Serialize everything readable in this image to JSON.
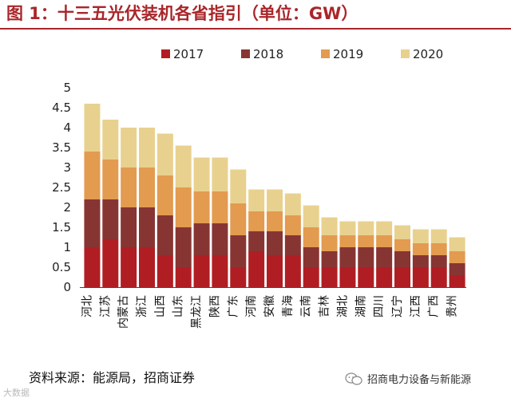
{
  "title": "图 1：十三五光伏装机各省指引（单位：GW）",
  "source": "资料来源：能源局，招商证券",
  "watermark": "招商电力设备与新能源",
  "corner_mark": "大数据",
  "colors": {
    "accent": "#a9262a",
    "s2017": "#b01e23",
    "s2018": "#873533",
    "s2019": "#e39b4f",
    "s2020": "#e8d18f"
  },
  "chart_data": {
    "type": "bar",
    "stacked": true,
    "title": "图 1：十三五光伏装机各省指引（单位：GW）",
    "xlabel": "",
    "ylabel": "",
    "ylim": [
      0,
      5
    ],
    "yticks": [
      "0",
      "0.5",
      "1",
      "1.5",
      "2",
      "2.5",
      "3",
      "3.5",
      "4",
      "4.5",
      "5"
    ],
    "grid": false,
    "legend_position": "top-center",
    "categories": [
      "河北",
      "江苏",
      "内蒙古",
      "浙江",
      "山西",
      "山东",
      "黑龙江",
      "陕西",
      "广东",
      "河南",
      "安徽",
      "青海",
      "云南",
      "吉林",
      "湖北",
      "湖南",
      "四川",
      "辽宁",
      "江西",
      "广西",
      "贵州"
    ],
    "series": [
      {
        "name": "2017",
        "values": [
          1.0,
          1.2,
          1.0,
          1.0,
          0.8,
          0.5,
          0.8,
          0.8,
          0.5,
          0.9,
          0.8,
          0.8,
          0.5,
          0.5,
          0.5,
          0.5,
          0.5,
          0.5,
          0.5,
          0.5,
          0.3
        ]
      },
      {
        "name": "2018",
        "values": [
          1.2,
          1.0,
          1.0,
          1.0,
          1.0,
          1.0,
          0.8,
          0.8,
          0.8,
          0.5,
          0.6,
          0.5,
          0.5,
          0.4,
          0.5,
          0.5,
          0.5,
          0.4,
          0.3,
          0.3,
          0.3
        ]
      },
      {
        "name": "2019",
        "values": [
          1.2,
          1.0,
          1.0,
          1.0,
          1.0,
          1.0,
          0.8,
          0.8,
          0.8,
          0.5,
          0.5,
          0.5,
          0.5,
          0.4,
          0.3,
          0.3,
          0.3,
          0.3,
          0.3,
          0.3,
          0.3
        ]
      },
      {
        "name": "2020",
        "values": [
          1.2,
          1.0,
          1.0,
          1.0,
          1.05,
          1.05,
          0.85,
          0.85,
          0.85,
          0.55,
          0.55,
          0.55,
          0.55,
          0.45,
          0.35,
          0.35,
          0.35,
          0.35,
          0.35,
          0.35,
          0.35
        ]
      }
    ]
  }
}
